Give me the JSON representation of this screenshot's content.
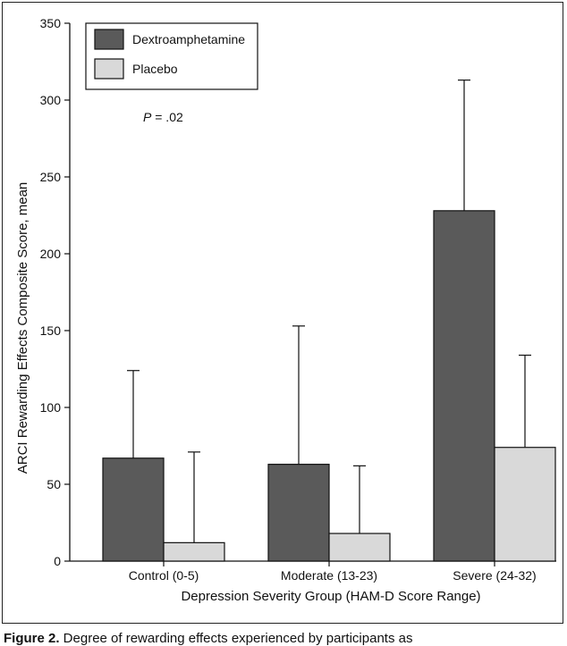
{
  "chart_data": {
    "type": "bar",
    "title": "",
    "xlabel": "Depression Severity Group (HAM-D Score Range)",
    "ylabel": "ARCI Rewarding Effects Composite Score, mean",
    "categories": [
      "Control (0-5)",
      "Moderate (13-23)",
      "Severe (24-32)"
    ],
    "series": [
      {
        "name": "Dextroamphetamine",
        "values": [
          67,
          63,
          228
        ],
        "error_upper": [
          124,
          153,
          313
        ],
        "color": "#5a5a5a"
      },
      {
        "name": "Placebo",
        "values": [
          12,
          18,
          74
        ],
        "error_upper": [
          71,
          62,
          134
        ],
        "color": "#d9d9d9"
      }
    ],
    "ylim": [
      0,
      350
    ],
    "yticks": [
      0,
      50,
      100,
      150,
      200,
      250,
      300,
      350
    ],
    "annotation": {
      "italic": "P",
      "text": " = .02"
    },
    "grid": false,
    "legend_position": "top-left"
  },
  "caption": {
    "label": "Figure 2.",
    "text": " Degree of rewarding effects experienced by participants as"
  }
}
